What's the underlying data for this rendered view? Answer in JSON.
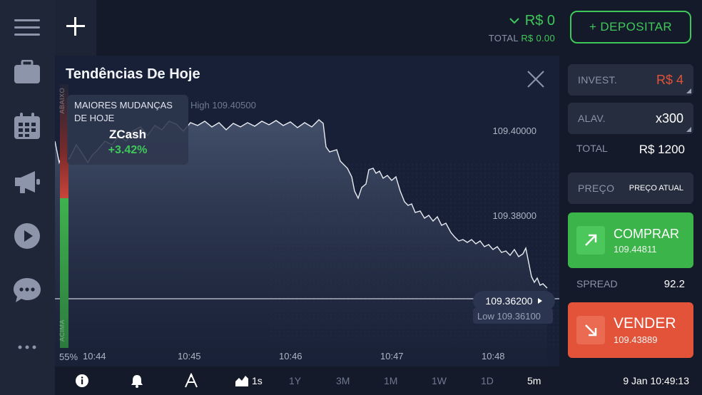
{
  "header": {
    "balance": "R$ 0",
    "total_label": "TOTAL",
    "total_value": "R$ 0.00",
    "deposit_label": "+ DEPOSITAR"
  },
  "chart": {
    "title": "Tendências De Hoje",
    "popular_title": "MAIORES MUDANÇAS DE HOJE",
    "popular_asset": "ZCash",
    "popular_change": "+3.42%",
    "high_label": "High 109.40500",
    "y_labels": [
      "109.40000",
      "109.38000"
    ],
    "current_price": "109.36200",
    "low_label": "Low 109.36100",
    "x_labels": [
      "10:44",
      "10:45",
      "10:46",
      "10:47",
      "10:48"
    ],
    "percent": "55%",
    "down_label": "ABAIXO",
    "up_label": "ACIMA"
  },
  "panel": {
    "invest_label": "INVEST.",
    "invest_value": "R$ 4",
    "leverage_label": "ALAV.",
    "leverage_value": "x300",
    "total_label": "TOTAL",
    "total_value": "R$ 1200",
    "price_label": "PREÇO",
    "price_value": "PREÇO ATUAL",
    "buy_label": "COMPRAR",
    "buy_price": "109.44811",
    "spread_label": "SPREAD",
    "spread_value": "92.2",
    "sell_label": "VENDER",
    "sell_price": "109.43889"
  },
  "bottombar": {
    "chart_interval": "1s",
    "periods": [
      "1Y",
      "3M",
      "1M",
      "1W",
      "1D",
      "5m"
    ],
    "clock": "9 Jan 10:49:13"
  },
  "colors": {
    "green": "#3fc85a",
    "red": "#e2533a",
    "background": "#151b2b"
  },
  "chart_data": {
    "type": "area",
    "x": [
      "10:44",
      "10:45",
      "10:46",
      "10:47",
      "10:48"
    ],
    "y": [
      109.4005,
      109.4025,
      109.3975,
      109.3855,
      109.3635
    ],
    "current": 109.362,
    "high": 109.405,
    "low": 109.361,
    "ylim": [
      109.358,
      109.418
    ],
    "grid": false
  }
}
